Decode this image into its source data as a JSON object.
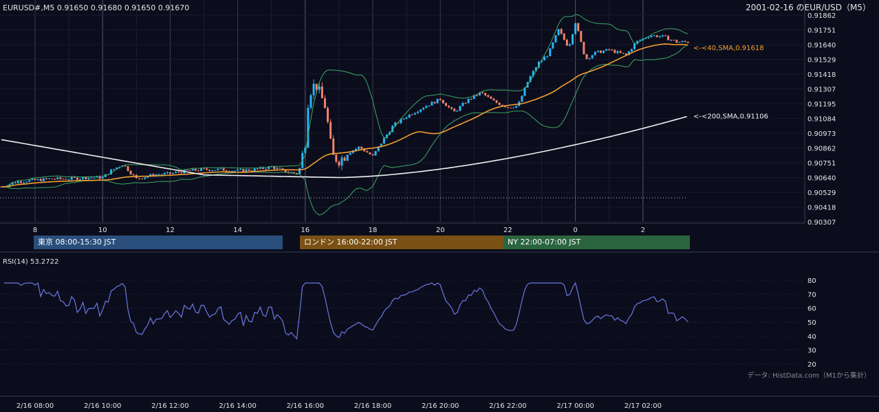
{
  "header": {
    "symbol_line": "EURUSD#,M5 0.91650 0.91680 0.91650 0.91670",
    "date_title": "2001-02-16 のEUR/USD（M5）"
  },
  "sessions": [
    {
      "label": "東京 08:00-15:30 JST",
      "color": "#2a4e7c"
    },
    {
      "label": "ロンドン 16:00-22:00 JST",
      "color": "#7a5014"
    },
    {
      "label": "NY 22:00-07:00 JST",
      "color": "#2a6540"
    }
  ],
  "rsi_title": "RSI(14) 53.2722",
  "credit": "データ: HistData.com（M1から集計）",
  "colors": {
    "bull": "#29b6f6",
    "bear": "#f4826b",
    "sma40": "#f5a030",
    "sma200": "#f2f2f2",
    "bb": "#3fa866",
    "rsi": "#6b79e6"
  },
  "chart_data": [
    {
      "type": "candlestick",
      "series_name": "EURUSD#,M5",
      "x_ticks": [
        "8",
        "10",
        "12",
        "14",
        "16",
        "18",
        "20",
        "22",
        "0",
        "2"
      ],
      "y_ticks": [
        0.91862,
        0.91751,
        0.9164,
        0.91529,
        0.91418,
        0.91307,
        0.91195,
        0.91084,
        0.90973,
        0.90862,
        0.90751,
        0.9064,
        0.90529,
        0.90418,
        0.90307
      ],
      "ylim": [
        0.90307,
        0.91862
      ],
      "last": {
        "open": 0.9165,
        "high": 0.9168,
        "low": 0.9165,
        "close": 0.9167
      },
      "indicators": [
        {
          "name": "<-<40,SMA,0.91618",
          "value": 0.91618
        },
        {
          "name": "<-<200,SMA,0.91106",
          "value": 0.91106
        }
      ],
      "close_path_approx": [
        [
          7.0,
          0.9057
        ],
        [
          7.5,
          0.9061
        ],
        [
          8.0,
          0.9062
        ],
        [
          8.5,
          0.9063
        ],
        [
          9.0,
          0.9063
        ],
        [
          9.5,
          0.9064
        ],
        [
          10.0,
          0.9064
        ],
        [
          10.3,
          0.907
        ],
        [
          10.6,
          0.9074
        ],
        [
          11.0,
          0.9063
        ],
        [
          11.5,
          0.9066
        ],
        [
          12.0,
          0.9067
        ],
        [
          12.5,
          0.9069
        ],
        [
          13.0,
          0.907
        ],
        [
          13.5,
          0.907
        ],
        [
          14.0,
          0.9069
        ],
        [
          14.5,
          0.907
        ],
        [
          15.0,
          0.9072
        ],
        [
          15.5,
          0.9068
        ],
        [
          15.8,
          0.9067
        ],
        [
          16.0,
          0.9091
        ],
        [
          16.1,
          0.9127
        ],
        [
          16.3,
          0.9135
        ],
        [
          16.6,
          0.9117
        ],
        [
          16.8,
          0.908
        ],
        [
          17.0,
          0.9077
        ],
        [
          17.3,
          0.9083
        ],
        [
          17.6,
          0.9087
        ],
        [
          18.0,
          0.908
        ],
        [
          18.3,
          0.9092
        ],
        [
          18.6,
          0.9103
        ],
        [
          19.0,
          0.911
        ],
        [
          19.5,
          0.9117
        ],
        [
          20.0,
          0.9123
        ],
        [
          20.4,
          0.9113
        ],
        [
          20.8,
          0.9122
        ],
        [
          21.2,
          0.9128
        ],
        [
          21.6,
          0.9121
        ],
        [
          22.0,
          0.9117
        ],
        [
          22.3,
          0.9118
        ],
        [
          22.6,
          0.9137
        ],
        [
          22.9,
          0.915
        ],
        [
          23.2,
          0.9157
        ],
        [
          23.5,
          0.9175
        ],
        [
          23.8,
          0.9162
        ],
        [
          24.0,
          0.9181
        ],
        [
          24.3,
          0.9153
        ],
        [
          24.6,
          0.9158
        ],
        [
          25.0,
          0.916
        ],
        [
          25.5,
          0.9156
        ],
        [
          25.8,
          0.9166
        ],
        [
          26.2,
          0.9171
        ],
        [
          26.6,
          0.917
        ],
        [
          27.0,
          0.9166
        ],
        [
          27.4,
          0.9166
        ]
      ]
    },
    {
      "type": "line",
      "series_name": "RSI(14)",
      "y_ticks": [
        80,
        70,
        60,
        50,
        40,
        30,
        20
      ],
      "ylim": [
        20,
        80
      ],
      "x_ticks": [
        "2/16 08:00",
        "2/16 10:00",
        "2/16 12:00",
        "2/16 14:00",
        "2/16 16:00",
        "2/16 18:00",
        "2/16 20:00",
        "2/16 22:00",
        "2/17 00:00",
        "2/17 02:00"
      ],
      "last_value": 53.2722
    }
  ]
}
